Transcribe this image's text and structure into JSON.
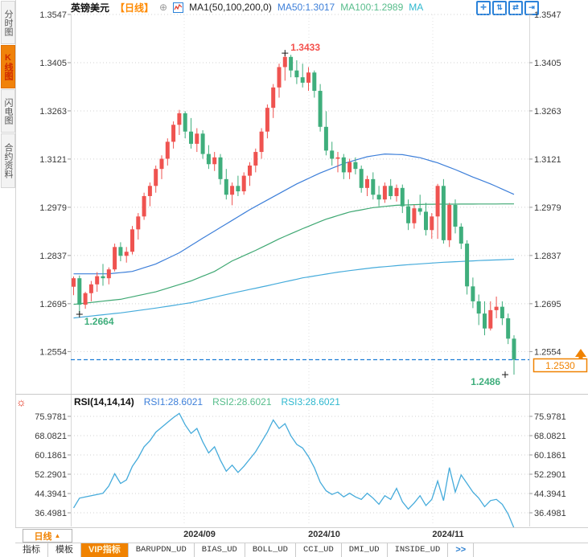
{
  "topbar": {
    "symbol": "英镑美元",
    "period": "【日线】",
    "plus_icon": "⊕",
    "ma_label": "MA1(50,100,200,0)",
    "ma50": "MA50:1.3017",
    "ma100": "MA100:1.2989",
    "ma_extra": "MA",
    "tool_icons": [
      "✛",
      "⇅",
      "⇄",
      "⇥"
    ]
  },
  "sidebar": {
    "items": [
      {
        "label": "分时图",
        "active": false
      },
      {
        "label": "K线图",
        "active": true
      },
      {
        "label": "闪电图",
        "active": false
      },
      {
        "label": "合约资料",
        "active": false
      }
    ]
  },
  "rsi_header": {
    "title": "RSI(14,14,14)",
    "rsi1": "RSI1:28.6021",
    "rsi2": "RSI2:28.6021",
    "rsi3": "RSI3:28.6021",
    "settings_icon": "☼"
  },
  "bottom": {
    "period_label": "日线",
    "period_arrow": "▲",
    "dates": [
      "2024/09",
      "2024/10",
      "2024/11"
    ],
    "tabs": [
      {
        "label": "指标",
        "active": false
      },
      {
        "label": "模板",
        "active": false
      },
      {
        "label": "VIP指标",
        "active": true
      },
      {
        "label": "BARUPDN_UD",
        "active": false
      },
      {
        "label": "BIAS_UD",
        "active": false
      },
      {
        "label": "BOLL_UD",
        "active": false
      },
      {
        "label": "CCI_UD",
        "active": false
      },
      {
        "label": "DMI_UD",
        "active": false
      },
      {
        "label": "INSIDE_UD",
        "active": false
      },
      {
        "label": ">>",
        "active": false
      }
    ]
  },
  "colors": {
    "up": "#ef5350",
    "down": "#3fae7c",
    "ma50": "#3d7fd9",
    "ma100": "#3fa873",
    "ma200": "#45abdb",
    "rsi": "#45abdb",
    "dashed_line": "#1e7ed6",
    "accent_orange": "#f08200",
    "annotation_red": "#f4504c",
    "annotation_green": "#3fae7c",
    "axis_text": "#3a3a3a",
    "grid": "#d2d2d2",
    "month_grid": "#e0e0e0",
    "icon_blue": "#2b82d9"
  },
  "chart_data": {
    "type": "candlestick",
    "title": "英镑美元 日线 (GBP/USD Daily)",
    "price_axis": [
      1.3547,
      1.3405,
      1.3263,
      1.3121,
      1.2979,
      1.2837,
      1.2695,
      1.2554
    ],
    "rsi_axis": [
      75.9781,
      68.0821,
      60.1861,
      52.2901,
      44.3941,
      36.4981
    ],
    "x_labels": [
      "2024/09",
      "2024/10",
      "2024/11"
    ],
    "last_price": 1.253,
    "annotations": {
      "high": {
        "index": 36,
        "price": 1.3433,
        "label": "1.3433"
      },
      "low1": {
        "index": 1,
        "price": 1.2664,
        "label": "1.2664"
      },
      "low2": {
        "index": 75,
        "price": 1.2486,
        "label": "1.2486"
      },
      "last": {
        "price": 1.253,
        "label": "1.2530"
      }
    },
    "candles": [
      [
        1.2745,
        1.2775,
        1.272,
        1.277
      ],
      [
        1.277,
        1.2778,
        1.2664,
        1.2692
      ],
      [
        1.2692,
        1.273,
        1.268,
        1.2726
      ],
      [
        1.2726,
        1.2762,
        1.2702,
        1.2752
      ],
      [
        1.2752,
        1.2788,
        1.273,
        1.2776
      ],
      [
        1.2776,
        1.2812,
        1.2748,
        1.277
      ],
      [
        1.277,
        1.2802,
        1.2752,
        1.2796
      ],
      [
        1.2796,
        1.2872,
        1.279,
        1.2862
      ],
      [
        1.2862,
        1.2876,
        1.282,
        1.2836
      ],
      [
        1.2836,
        1.2862,
        1.2816,
        1.2848
      ],
      [
        1.2848,
        1.2924,
        1.284,
        1.2914
      ],
      [
        1.2914,
        1.2962,
        1.2884,
        1.2952
      ],
      [
        1.2952,
        1.3022,
        1.2942,
        1.3012
      ],
      [
        1.3012,
        1.3052,
        1.2982,
        1.3042
      ],
      [
        1.3042,
        1.3102,
        1.3022,
        1.3092
      ],
      [
        1.3092,
        1.3132,
        1.3062,
        1.3122
      ],
      [
        1.3122,
        1.3182,
        1.3102,
        1.3172
      ],
      [
        1.3172,
        1.3232,
        1.3152,
        1.3222
      ],
      [
        1.3222,
        1.3266,
        1.3192,
        1.3256
      ],
      [
        1.3256,
        1.3262,
        1.3182,
        1.3202
      ],
      [
        1.3202,
        1.3242,
        1.3152,
        1.3166
      ],
      [
        1.3166,
        1.3212,
        1.3142,
        1.3196
      ],
      [
        1.3196,
        1.3206,
        1.3122,
        1.3136
      ],
      [
        1.3136,
        1.3162,
        1.3092,
        1.3106
      ],
      [
        1.3106,
        1.3142,
        1.3086,
        1.3126
      ],
      [
        1.3126,
        1.3136,
        1.3046,
        1.3062
      ],
      [
        1.3062,
        1.3092,
        1.3002,
        1.3016
      ],
      [
        1.3016,
        1.3052,
        1.2985,
        1.3042
      ],
      [
        1.3042,
        1.3072,
        1.3012,
        1.3026
      ],
      [
        1.3026,
        1.3082,
        1.3016,
        1.3072
      ],
      [
        1.3072,
        1.3112,
        1.3042,
        1.3102
      ],
      [
        1.3102,
        1.3152,
        1.3082,
        1.3142
      ],
      [
        1.3142,
        1.3212,
        1.3122,
        1.3202
      ],
      [
        1.3202,
        1.3282,
        1.3182,
        1.3272
      ],
      [
        1.3272,
        1.3342,
        1.3242,
        1.3332
      ],
      [
        1.3332,
        1.3402,
        1.3302,
        1.3392
      ],
      [
        1.3392,
        1.3433,
        1.3352,
        1.3422
      ],
      [
        1.3422,
        1.3428,
        1.3362,
        1.3382
      ],
      [
        1.3382,
        1.3412,
        1.3342,
        1.3362
      ],
      [
        1.3362,
        1.3402,
        1.3332,
        1.3346
      ],
      [
        1.3346,
        1.3392,
        1.3322,
        1.3376
      ],
      [
        1.3376,
        1.3382,
        1.3302,
        1.3322
      ],
      [
        1.3322,
        1.3342,
        1.3202,
        1.3216
      ],
      [
        1.3216,
        1.3262,
        1.3132,
        1.3146
      ],
      [
        1.3146,
        1.3172,
        1.3102,
        1.3122
      ],
      [
        1.3122,
        1.3142,
        1.3082,
        1.3126
      ],
      [
        1.3126,
        1.3136,
        1.3062,
        1.3082
      ],
      [
        1.3082,
        1.3122,
        1.3062,
        1.3112
      ],
      [
        1.3112,
        1.3126,
        1.3076,
        1.3092
      ],
      [
        1.3092,
        1.3102,
        1.3022,
        1.3036
      ],
      [
        1.3036,
        1.3072,
        1.3012,
        1.3062
      ],
      [
        1.3062,
        1.3082,
        1.3002,
        1.3016
      ],
      [
        1.3016,
        1.3042,
        1.2982,
        1.3002
      ],
      [
        1.3002,
        1.3052,
        1.2992,
        1.3042
      ],
      [
        1.3042,
        1.3062,
        1.3002,
        1.3012
      ],
      [
        1.3012,
        1.3046,
        1.2996,
        1.3036
      ],
      [
        1.3036,
        1.3046,
        1.2962,
        1.2982
      ],
      [
        1.2982,
        1.3002,
        1.2912,
        1.2932
      ],
      [
        1.2932,
        1.2986,
        1.2916,
        1.2976
      ],
      [
        1.2976,
        1.3016,
        1.2956,
        1.2966
      ],
      [
        1.2966,
        1.2992,
        1.2896,
        1.2912
      ],
      [
        1.2912,
        1.2962,
        1.2886,
        1.2952
      ],
      [
        1.2952,
        1.3048,
        1.2886,
        1.3042
      ],
      [
        1.3042,
        1.3062,
        1.2872,
        1.2882
      ],
      [
        1.2882,
        1.2992,
        1.2862,
        1.2986
      ],
      [
        1.2986,
        1.3002,
        1.2902,
        1.2922
      ],
      [
        1.2922,
        1.2932,
        1.2856,
        1.2872
      ],
      [
        1.2872,
        1.2882,
        1.2722,
        1.2746
      ],
      [
        1.2746,
        1.2772,
        1.2682,
        1.2702
      ],
      [
        1.2702,
        1.2722,
        1.2632,
        1.2666
      ],
      [
        1.2666,
        1.2702,
        1.2602,
        1.2622
      ],
      [
        1.2622,
        1.2702,
        1.2616,
        1.2676
      ],
      [
        1.2676,
        1.2716,
        1.2652,
        1.2686
      ],
      [
        1.2686,
        1.2702,
        1.2632,
        1.2652
      ],
      [
        1.2652,
        1.2666,
        1.2576,
        1.2592
      ],
      [
        1.2592,
        1.2602,
        1.2486,
        1.253
      ]
    ],
    "ma50_points": [
      [
        0,
        1.2783
      ],
      [
        6,
        1.2783
      ],
      [
        10,
        1.279
      ],
      [
        14,
        1.2812
      ],
      [
        18,
        1.2845
      ],
      [
        22,
        1.2888
      ],
      [
        26,
        1.293
      ],
      [
        30,
        1.2972
      ],
      [
        34,
        1.301
      ],
      [
        38,
        1.3048
      ],
      [
        42,
        1.308
      ],
      [
        46,
        1.3108
      ],
      [
        50,
        1.3128
      ],
      [
        53,
        1.3136
      ],
      [
        56,
        1.3134
      ],
      [
        59,
        1.3125
      ],
      [
        62,
        1.311
      ],
      [
        65,
        1.309
      ],
      [
        68,
        1.3068
      ],
      [
        71,
        1.3048
      ],
      [
        75,
        1.3017
      ]
    ],
    "ma100_points": [
      [
        0,
        1.2693
      ],
      [
        8,
        1.2708
      ],
      [
        14,
        1.273
      ],
      [
        20,
        1.2762
      ],
      [
        24,
        1.279
      ],
      [
        27,
        1.2821
      ],
      [
        31,
        1.2852
      ],
      [
        35,
        1.2886
      ],
      [
        39,
        1.2916
      ],
      [
        43,
        1.2944
      ],
      [
        47,
        1.2965
      ],
      [
        51,
        1.2978
      ],
      [
        55,
        1.2985
      ],
      [
        60,
        1.2988
      ],
      [
        75,
        1.2989
      ]
    ],
    "ma200_points": [
      [
        0,
        1.2653
      ],
      [
        8,
        1.2668
      ],
      [
        14,
        1.2682
      ],
      [
        20,
        1.2698
      ],
      [
        27,
        1.2726
      ],
      [
        33,
        1.2748
      ],
      [
        39,
        1.2771
      ],
      [
        45,
        1.2788
      ],
      [
        51,
        1.2801
      ],
      [
        57,
        1.281
      ],
      [
        63,
        1.2817
      ],
      [
        69,
        1.2822
      ],
      [
        75,
        1.2826
      ]
    ],
    "rsi_values": [
      38.5,
      42.5,
      43.0,
      43.5,
      44.0,
      44.5,
      47.5,
      52.5,
      48.5,
      50.0,
      55.5,
      59.0,
      63.5,
      66.0,
      69.5,
      71.5,
      73.5,
      75.5,
      77.2,
      72.5,
      69.0,
      71.0,
      65.5,
      61.0,
      63.5,
      58.0,
      53.5,
      56.0,
      53.0,
      55.5,
      58.5,
      61.5,
      65.5,
      69.5,
      74.5,
      71.0,
      73.0,
      68.0,
      64.5,
      63.0,
      59.5,
      55.0,
      49.0,
      45.5,
      44.0,
      45.0,
      43.0,
      44.5,
      43.0,
      42.0,
      44.5,
      42.5,
      40.0,
      43.5,
      42.0,
      46.5,
      41.0,
      38.0,
      40.5,
      43.5,
      39.5,
      42.0,
      49.5,
      41.5,
      55.0,
      45.0,
      52.0,
      48.5,
      45.0,
      42.5,
      39.0,
      41.5,
      42.0,
      40.0,
      36.0,
      28.6
    ]
  }
}
